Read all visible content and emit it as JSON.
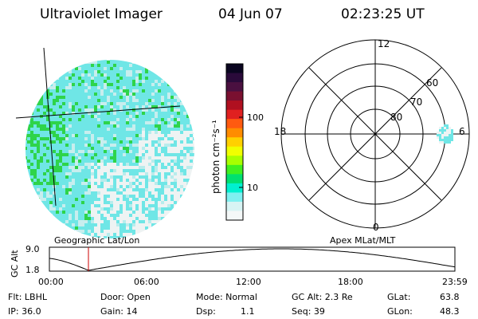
{
  "header": {
    "title": "Ultraviolet Imager",
    "date": "04 Jun 07",
    "time": "02:23:25 UT"
  },
  "colorbar": {
    "unit_label": "photon cm⁻²s⁻¹",
    "ticks": [
      "100",
      "10"
    ],
    "colors": [
      "#0a0520",
      "#2a0a3a",
      "#4a1040",
      "#7a1030",
      "#b01020",
      "#e02020",
      "#ff5a10",
      "#ff8c00",
      "#ffd000",
      "#f0ff00",
      "#a8ff00",
      "#40f020",
      "#00e070",
      "#00f0d0",
      "#7ff0f0",
      "#d8f4f4",
      "#f4f8f8"
    ]
  },
  "geo_view": {
    "colors": {
      "cyan": "#6fe6e6",
      "green": "#2ed44a",
      "white": "#eef3f3"
    }
  },
  "polar": {
    "mlt_labels": [
      "12",
      "18",
      "6",
      "0"
    ],
    "mlat_labels": [
      "60",
      "70",
      "80"
    ]
  },
  "timeline": {
    "left_label": "Geographic Lat/Lon",
    "right_label": "Apex  MLat/MLT",
    "y_axis_label": "GC Alt",
    "y_ticks": [
      "9.0",
      "1.8"
    ],
    "x_ticks": [
      "00:00",
      "06:00",
      "12:00",
      "18:00",
      "23:59"
    ],
    "marker_color": "#cc0000"
  },
  "status": {
    "flt": "Flt: LBHL",
    "ip": "IP: 36.0",
    "door": "Door: Open",
    "gain": "Gain: 14",
    "mode": "Mode: Normal",
    "dsp_label": "Dsp:",
    "dsp_value": "1.1",
    "gc_alt": "GC Alt: 2.3 Re",
    "seq": "Seq: 39",
    "glat_label": "GLat:",
    "glat_value": "63.8",
    "glon_label": "GLon:",
    "glon_value": "48.3"
  }
}
